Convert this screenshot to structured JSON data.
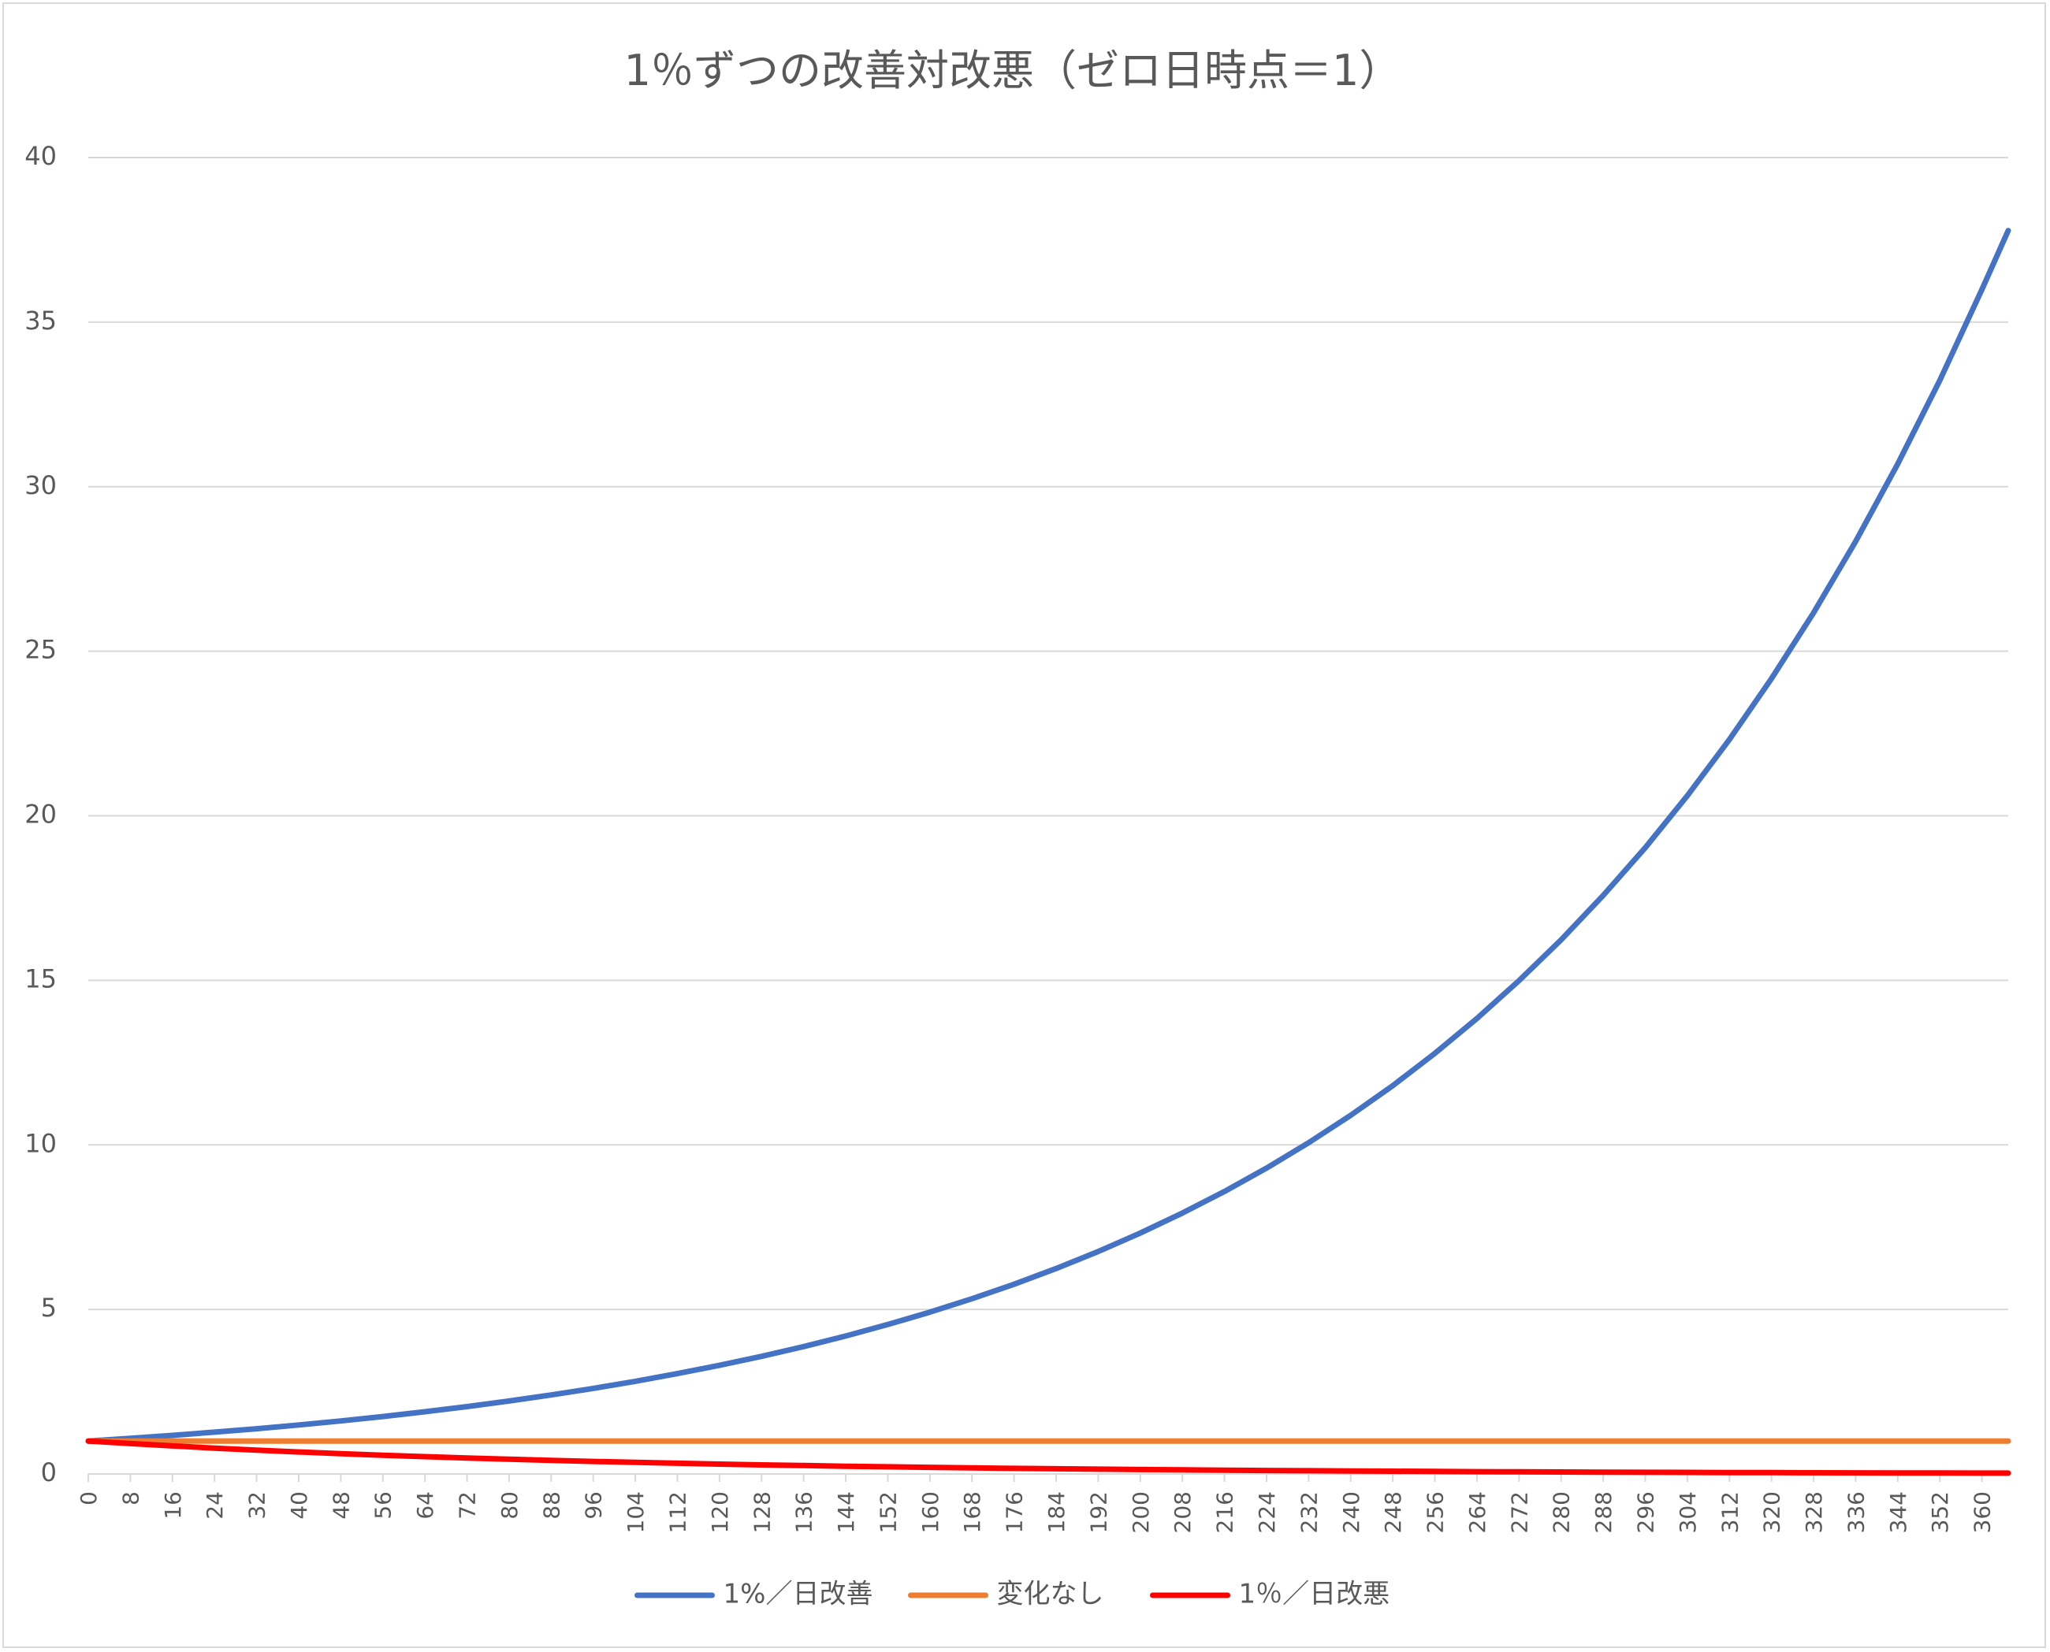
{
  "chart_data": {
    "type": "line",
    "title": "1％ずつの改善対改悪（ゼロ日時点＝1）",
    "xlabel": "",
    "ylabel": "",
    "ylim": [
      0,
      40
    ],
    "yticks": [
      0,
      5,
      10,
      15,
      20,
      25,
      30,
      35,
      40
    ],
    "xlim": [
      0,
      365
    ],
    "xticks": [
      0,
      8,
      16,
      24,
      32,
      40,
      48,
      56,
      64,
      72,
      80,
      88,
      96,
      104,
      112,
      120,
      128,
      136,
      144,
      152,
      160,
      168,
      176,
      184,
      192,
      200,
      208,
      216,
      224,
      232,
      240,
      248,
      256,
      264,
      272,
      280,
      288,
      296,
      304,
      312,
      320,
      328,
      336,
      344,
      352,
      360
    ],
    "grid": true,
    "legend_position": "bottom",
    "x": [
      0,
      8,
      16,
      24,
      32,
      40,
      48,
      56,
      64,
      72,
      80,
      88,
      96,
      104,
      112,
      120,
      128,
      136,
      144,
      152,
      160,
      168,
      176,
      184,
      192,
      200,
      208,
      216,
      224,
      232,
      240,
      248,
      256,
      264,
      272,
      280,
      288,
      296,
      304,
      312,
      320,
      328,
      336,
      344,
      352,
      360,
      365
    ],
    "series": [
      {
        "name": "1%／日改善",
        "color": "#4472c4",
        "values": [
          1.0,
          1.083,
          1.173,
          1.27,
          1.375,
          1.489,
          1.612,
          1.746,
          1.891,
          2.047,
          2.217,
          2.401,
          2.6,
          2.815,
          3.049,
          3.301,
          3.575,
          3.871,
          4.192,
          4.54,
          4.916,
          5.323,
          5.765,
          6.242,
          6.76,
          7.32,
          7.927,
          8.584,
          9.296,
          10.067,
          10.9,
          11.8,
          12.78,
          13.84,
          14.99,
          16.23,
          17.58,
          19.03,
          20.61,
          22.32,
          24.17,
          26.17,
          28.34,
          30.69,
          33.23,
          35.99,
          37.78
        ]
      },
      {
        "name": "変化なし",
        "color": "#ed7d31",
        "values": [
          1,
          1,
          1,
          1,
          1,
          1,
          1,
          1,
          1,
          1,
          1,
          1,
          1,
          1,
          1,
          1,
          1,
          1,
          1,
          1,
          1,
          1,
          1,
          1,
          1,
          1,
          1,
          1,
          1,
          1,
          1,
          1,
          1,
          1,
          1,
          1,
          1,
          1,
          1,
          1,
          1,
          1,
          1,
          1,
          1,
          1,
          1
        ]
      },
      {
        "name": "1％／日改悪",
        "color": "#ff0000",
        "values": [
          1.0,
          0.923,
          0.851,
          0.786,
          0.725,
          0.669,
          0.617,
          0.57,
          0.526,
          0.485,
          0.448,
          0.413,
          0.381,
          0.352,
          0.325,
          0.299,
          0.276,
          0.255,
          0.235,
          0.217,
          0.2,
          0.185,
          0.171,
          0.157,
          0.145,
          0.134,
          0.124,
          0.114,
          0.105,
          0.097,
          0.09,
          0.083,
          0.076,
          0.07,
          0.065,
          0.06,
          0.055,
          0.051,
          0.047,
          0.043,
          0.04,
          0.037,
          0.034,
          0.032,
          0.029,
          0.027,
          0.026
        ]
      }
    ]
  }
}
